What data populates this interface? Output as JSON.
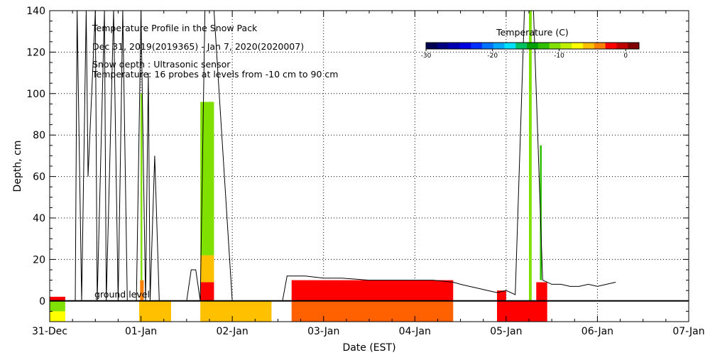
{
  "chart_data": {
    "type": "heatmap",
    "title": "Temperature Profile in the Snow Pack",
    "subtitle": "Dec 31, 2019(2019365) - Jan  7, 2020(2020007)",
    "annotations": [
      "Snow depth : Ultrasonic sensor",
      "Temperature: 16 probes at levels from -10 cm to 90 cm"
    ],
    "ground_label": "ground level",
    "xlabel": "Date (EST)",
    "ylabel": "Depth, cm",
    "x_tick_labels": [
      "31-Dec",
      "01-Jan",
      "02-Jan",
      "03-Jan",
      "04-Jan",
      "05-Jan",
      "06-Jan",
      "07-Jan"
    ],
    "x_range_days": [
      0,
      7
    ],
    "ylim": [
      -10,
      140
    ],
    "y_ticks": [
      0,
      20,
      40,
      60,
      80,
      100,
      120,
      140
    ],
    "grid": true,
    "colorbar": {
      "title": "Temperature (C)",
      "range": [
        -30,
        2
      ],
      "tick_values": [
        -30,
        -20,
        -10,
        0
      ],
      "tick_labels": [
        "-30",
        "-20",
        "-10",
        "0"
      ],
      "colors": [
        "#000050",
        "#000080",
        "#0000b0",
        "#0000e0",
        "#0030ff",
        "#0070ff",
        "#00a8ff",
        "#00e0ff",
        "#00c060",
        "#00a000",
        "#30c000",
        "#80e000",
        "#c0f000",
        "#ffff00",
        "#ffc000",
        "#ff8000",
        "#ff0000",
        "#c00000",
        "#800000"
      ]
    },
    "temperature_blocks": [
      {
        "t0": 0.0,
        "t1": 0.17,
        "d0": -10,
        "d1": -5,
        "color": "#ffff00"
      },
      {
        "t0": 0.0,
        "t1": 0.17,
        "d0": -5,
        "d1": 0,
        "color": "#80e000"
      },
      {
        "t0": 0.0,
        "t1": 0.17,
        "d0": 0,
        "d1": 2,
        "color": "#ff0000"
      },
      {
        "t0": 0.98,
        "t1": 1.33,
        "d0": -10,
        "d1": 0,
        "color": "#ffc000"
      },
      {
        "t0": 0.99,
        "t1": 1.03,
        "d0": 0,
        "d1": 10,
        "color": "#ff8000"
      },
      {
        "t0": 0.995,
        "t1": 1.015,
        "d0": 10,
        "d1": 100,
        "color": "#80e000"
      },
      {
        "t0": 1.65,
        "t1": 2.43,
        "d0": -10,
        "d1": 0,
        "color": "#ffc000"
      },
      {
        "t0": 1.65,
        "t1": 1.8,
        "d0": 0,
        "d1": 9,
        "color": "#ff0000"
      },
      {
        "t0": 1.65,
        "t1": 1.8,
        "d0": 9,
        "d1": 22,
        "color": "#ffc000"
      },
      {
        "t0": 1.65,
        "t1": 1.8,
        "d0": 22,
        "d1": 96,
        "color": "#80e000"
      },
      {
        "t0": 2.65,
        "t1": 4.42,
        "d0": -10,
        "d1": 0,
        "color": "#ff6000"
      },
      {
        "t0": 2.65,
        "t1": 4.42,
        "d0": 0,
        "d1": 10,
        "color": "#ff0000"
      },
      {
        "t0": 4.9,
        "t1": 5.45,
        "d0": -10,
        "d1": 0,
        "color": "#ff0000"
      },
      {
        "t0": 4.9,
        "t1": 5.0,
        "d0": 0,
        "d1": 5,
        "color": "#ff0000"
      },
      {
        "t0": 5.25,
        "t1": 5.28,
        "d0": 0,
        "d1": 140,
        "color": "#80e000"
      },
      {
        "t0": 5.37,
        "t1": 5.39,
        "d0": 10,
        "d1": 75,
        "color": "#30c000"
      },
      {
        "t0": 5.33,
        "t1": 5.45,
        "d0": 0,
        "d1": 9,
        "color": "#ff0000"
      }
    ],
    "snow_depth": {
      "x": [
        0.0,
        0.1,
        0.17,
        0.2,
        0.28,
        0.3,
        0.35,
        0.4,
        0.42,
        0.5,
        0.52,
        0.6,
        0.62,
        0.7,
        0.75,
        0.8,
        0.85,
        0.9,
        0.95,
        1.0,
        1.05,
        1.08,
        1.1,
        1.15,
        1.2,
        1.25,
        1.3,
        1.4,
        1.45,
        1.5,
        1.55,
        1.6,
        1.65,
        1.7,
        1.8,
        2.0,
        2.4,
        2.55,
        2.6,
        2.65,
        2.8,
        3.0,
        3.2,
        3.5,
        3.8,
        4.0,
        4.2,
        4.42,
        4.5,
        4.6,
        4.7,
        4.8,
        4.9,
        5.0,
        5.1,
        5.2,
        5.3,
        5.4,
        5.5,
        5.6,
        5.7,
        5.8,
        5.9,
        6.0,
        6.1,
        6.2
      ],
      "y": [
        0,
        0,
        0,
        0,
        0,
        140,
        0,
        140,
        60,
        140,
        0,
        140,
        0,
        140,
        0,
        140,
        0,
        0,
        0,
        140,
        0,
        110,
        0,
        70,
        0,
        0,
        0,
        0,
        0,
        0,
        15,
        15,
        0,
        140,
        140,
        0,
        0,
        0,
        12,
        12,
        12,
        11,
        11,
        10,
        10,
        10,
        10,
        9,
        8,
        7,
        6,
        5,
        4,
        5,
        3,
        140,
        140,
        10,
        8,
        8,
        7,
        7,
        8,
        7,
        8,
        9
      ]
    }
  }
}
